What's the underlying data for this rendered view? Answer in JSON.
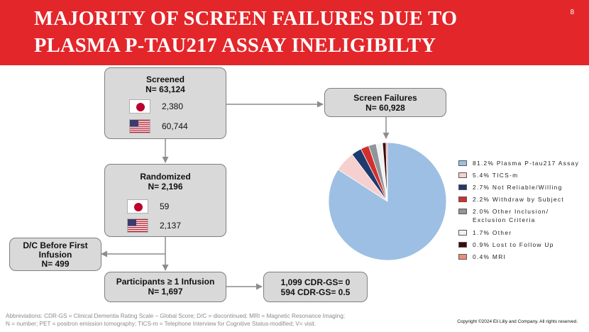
{
  "slide": {
    "title": "MAJORITY OF SCREEN FAILURES DUE TO PLASMA P-TAU217 ASSAY INELIGIBILTY",
    "page_number": "8",
    "header_color": "#e3262a"
  },
  "flow": {
    "screened": {
      "title": "Screened",
      "n": "N= 63,124",
      "japan": "2,380",
      "usa": "60,744"
    },
    "screen_failures": {
      "title": "Screen Failures",
      "n": "N= 60,928"
    },
    "randomized": {
      "title": "Randomized",
      "n": "N= 2,196",
      "japan": "59",
      "usa": "2,137"
    },
    "dc_before": {
      "line1": "D/C Before First",
      "line2": "Infusion",
      "n": "N= 499"
    },
    "participants": {
      "title": "Participants ≥ 1 Infusion",
      "n": "N= 1,697"
    },
    "cdr": {
      "line1": "1,099 CDR-GS= 0",
      "line2": "594 CDR-GS= 0.5"
    }
  },
  "chart_data": {
    "type": "pie",
    "title": "",
    "start": "top, clockwise, largest slice drawn last ending at top",
    "values": [
      81.2,
      5.4,
      2.7,
      2.2,
      2.0,
      1.7,
      0.9,
      0.4
    ],
    "labels": [
      "81.2% Plasma P-tau217 Assay",
      "5.4% TICS-m",
      "2.7% Not Reliable/Willing",
      "2.2% Withdraw by Subject",
      "2.0% Other Inclusion/ Exclusion Criteria",
      "1.7% Other",
      "0.9% Lost to Follow Up",
      "0.4% MRI"
    ],
    "colors": [
      "#9dbfe3",
      "#f6cfcf",
      "#1f3a6e",
      "#d32f2f",
      "#8e969c",
      "#f2f2f2",
      "#3a0d0d",
      "#f08b75"
    ],
    "legend_position": "right"
  },
  "footnote": {
    "line1": "Abbreviations: CDR-GS = Clinical Dementia Rating Scale – Global Score; D/C = discontinued; MRI = Magnetic Resonance Imaging;",
    "line2": "N = number; PET = positron emission tomography; TICS-m = Telephone Interview for Cognitive Status-modified; V= visit."
  },
  "copyright": "Copyright ©2024 Eli Lilly and Company. All rights reserved."
}
